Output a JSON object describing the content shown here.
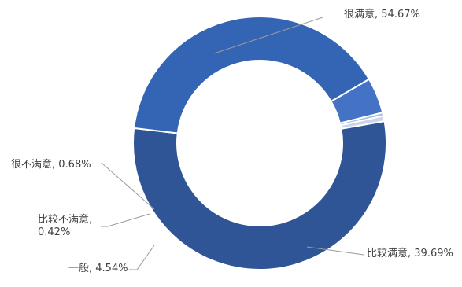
{
  "chart_data": {
    "type": "pie",
    "variant": "donut",
    "legend": "none",
    "title": "",
    "categories": [
      "很满意",
      "比较满意",
      "一般",
      "比较不满意",
      "很不满意"
    ],
    "values": [
      54.67,
      39.69,
      4.54,
      0.42,
      0.68
    ],
    "labels": [
      {
        "lines": [
          "很满意, 54.67%"
        ]
      },
      {
        "lines": [
          "比较满意, 39.69%"
        ]
      },
      {
        "lines": [
          "一般, 4.54%"
        ]
      },
      {
        "lines": [
          "比较不满意,",
          "0.42%"
        ]
      },
      {
        "lines": [
          "很不满意, 0.68%"
        ]
      }
    ],
    "colors": [
      "#2F5597",
      "#3464B4",
      "#4472C4",
      "#A9BEE3",
      "#C9D5EE"
    ]
  }
}
